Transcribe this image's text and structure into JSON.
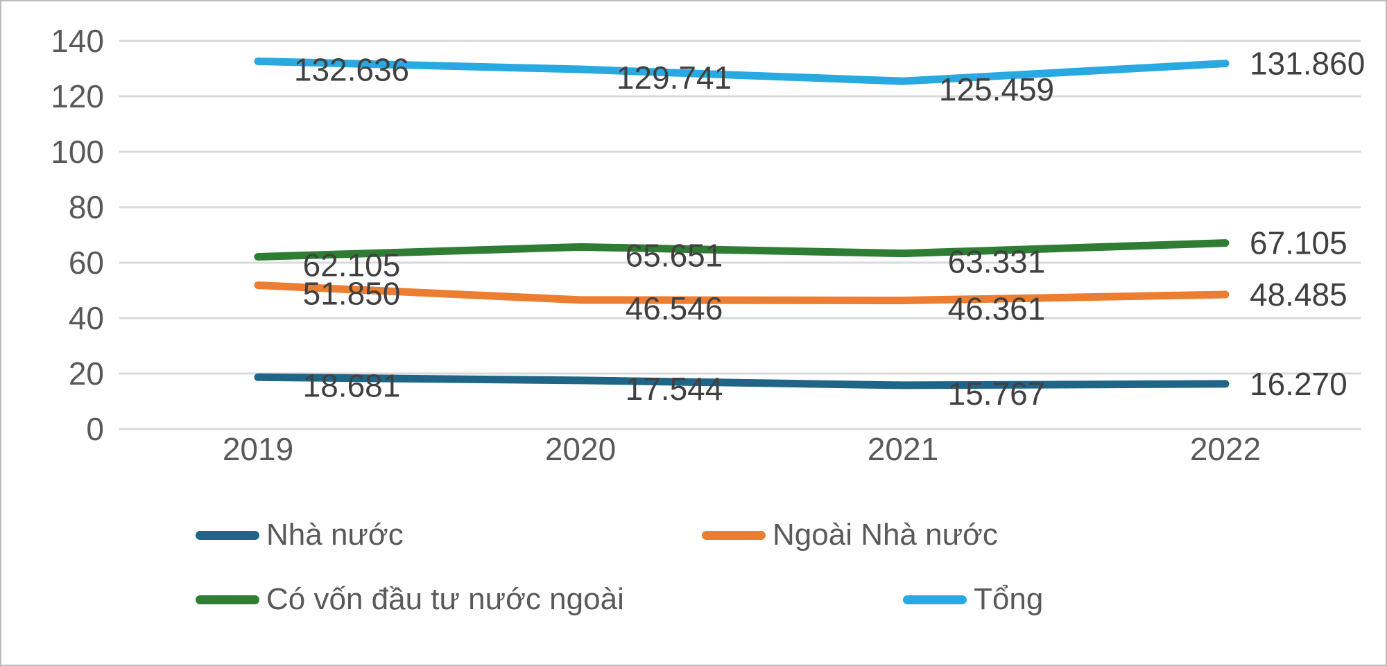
{
  "chart_data": {
    "type": "line",
    "title": "",
    "xlabel": "",
    "ylabel": "",
    "categories": [
      "2019",
      "2020",
      "2021",
      "2022"
    ],
    "series": [
      {
        "name": "Nhà nước",
        "color": "#1f6587",
        "values": [
          18.681,
          17.544,
          15.767,
          16.27
        ],
        "labels": [
          "18.681",
          "17.544",
          "15.767",
          "16.270"
        ]
      },
      {
        "name": "Ngoài Nhà nước",
        "color": "#ed7d31",
        "values": [
          51.85,
          46.546,
          46.361,
          48.485
        ],
        "labels": [
          "51.850",
          "46.546",
          "46.361",
          "48.485"
        ]
      },
      {
        "name": "Có vốn đầu tư nước ngoài",
        "color": "#2e7d32",
        "values": [
          62.105,
          65.651,
          63.331,
          67.105
        ],
        "labels": [
          "62.105",
          "65.651",
          "63.331",
          "67.105"
        ]
      },
      {
        "name": "Tổng",
        "color": "#29a9e1",
        "values": [
          132.636,
          129.741,
          125.459,
          131.86
        ],
        "labels": [
          "132.636",
          "129.741",
          "125.459",
          "131.860"
        ]
      }
    ],
    "ylim": [
      0,
      140
    ],
    "yticks": [
      "0",
      "20",
      "40",
      "60",
      "80",
      "100",
      "120",
      "140"
    ],
    "grid": true,
    "legend_position": "bottom",
    "colors": {
      "gridline": "#d9d9d9",
      "axis_text": "#595959",
      "data_label_text": "#404040",
      "border": "#bcbcbc",
      "background": "#ffffff"
    }
  }
}
